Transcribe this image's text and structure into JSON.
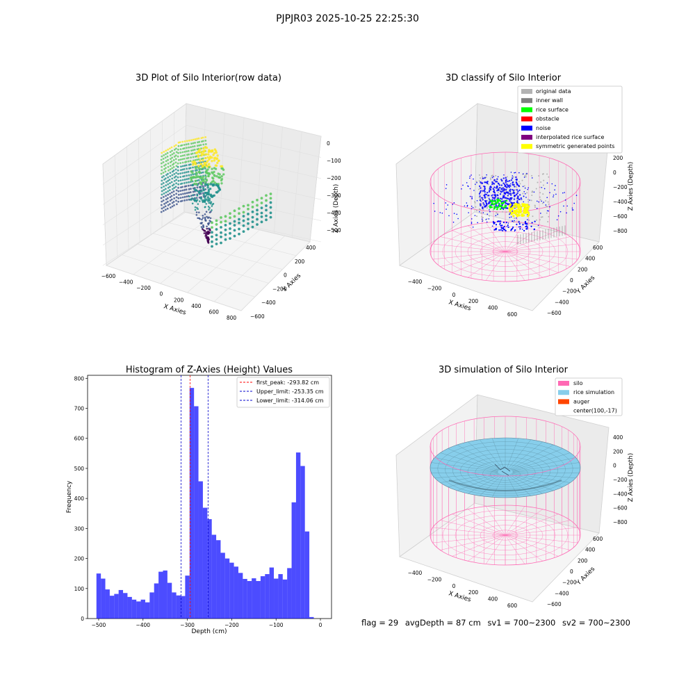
{
  "suptitle": "PJPJR03 2025-10-25 22:25:30",
  "footer": {
    "flag": "flag = 29",
    "avg_depth": "avgDepth = 87 cm",
    "sv1": "sv1 = 700~2300",
    "sv2": "sv2 = 700~2300"
  },
  "colors": {
    "histogram": "#0000ff",
    "first_peak": "#ff0000",
    "limits": "#0000cc",
    "silo": "#ff69b4",
    "rice": "#87ceeb",
    "auger": "#ff4500",
    "original": "#b3b3b3",
    "inner_wall": "#808080",
    "rice_surface": "#00ff00",
    "obstacle": "#ff0000",
    "noise": "#0000ff",
    "interpolated": "#800080",
    "symmetric": "#ffff00"
  },
  "panels": {
    "raw": {
      "title": "3D Plot of Silo Interior(row data)",
      "xlabel": "X Axies",
      "ylabel": "Y Axies",
      "zlabel": "Z Axies (Depth)",
      "xticks": [
        "−600",
        "−400",
        "−200",
        "0",
        "200",
        "400",
        "600",
        "800"
      ],
      "yticks": [
        "−600",
        "−400",
        "−200",
        "0",
        "200",
        "400"
      ],
      "zticks": [
        "0",
        "−100",
        "−200",
        "−300",
        "−400",
        "−500"
      ]
    },
    "classify": {
      "title": "3D classify of Silo Interior",
      "xlabel": "X Axies",
      "ylabel": "Y Axies",
      "zlabel": "Z Axies (Depth)",
      "xticks": [
        "−400",
        "−200",
        "0",
        "200",
        "400",
        "600"
      ],
      "yticks": [
        "−600",
        "−400",
        "−200",
        "0",
        "200",
        "400",
        "600"
      ],
      "zticks": [
        "200",
        "0",
        "−200",
        "−400",
        "−600",
        "−800"
      ],
      "legend": [
        {
          "label": "original data",
          "color": "#b3b3b3"
        },
        {
          "label": "inner wall",
          "color": "#808080"
        },
        {
          "label": "rice surface",
          "color": "#00ff00"
        },
        {
          "label": "obstacle",
          "color": "#ff0000"
        },
        {
          "label": "noise",
          "color": "#0000ff"
        },
        {
          "label": "interpolated rice surface",
          "color": "#800080"
        },
        {
          "label": "symmetric generated points",
          "color": "#ffff00"
        }
      ]
    },
    "simulation": {
      "title": "3D simulation of Silo Interior",
      "xlabel": "X Axies",
      "ylabel": "Y Axies",
      "zlabel": "Z Axies (Depth)",
      "xticks": [
        "−400",
        "−200",
        "0",
        "200",
        "400",
        "600"
      ],
      "yticks": [
        "−600",
        "−400",
        "−200",
        "0",
        "200",
        "400",
        "600"
      ],
      "zticks": [
        "400",
        "200",
        "0",
        "−200",
        "−400",
        "−600",
        "−800"
      ],
      "legend": [
        {
          "label": "silo",
          "color": "#ff69b4"
        },
        {
          "label": "rice simulation",
          "color": "#87ceeb"
        },
        {
          "label": "auger",
          "color": "#ff4500"
        },
        {
          "label": "center(100,-17)",
          "color": ""
        }
      ]
    }
  },
  "chart_data": {
    "type": "bar",
    "title": "Histogram of Z-Axies (Height) Values",
    "xlabel": "Depth (cm)",
    "ylabel": "Frequency",
    "xlim": [
      -525,
      25
    ],
    "ylim": [
      0,
      810
    ],
    "xticks": [
      -500,
      -400,
      -300,
      -200,
      -100,
      0
    ],
    "yticks": [
      0,
      100,
      200,
      300,
      400,
      500,
      600,
      700,
      800
    ],
    "bin_start": -505,
    "bin_width": 10,
    "values": [
      150,
      133,
      97,
      76,
      82,
      95,
      85,
      72,
      63,
      57,
      63,
      54,
      87,
      117,
      156,
      160,
      119,
      87,
      77,
      75,
      143,
      768,
      707,
      457,
      369,
      331,
      279,
      261,
      219,
      200,
      186,
      173,
      152,
      132,
      125,
      134,
      125,
      141,
      148,
      170,
      133,
      148,
      130,
      168,
      387,
      553,
      508,
      290,
      5
    ],
    "vlines": [
      {
        "label": "first_peak: -293.82 cm",
        "x": -293.82,
        "color": "#ff0000"
      },
      {
        "label": "Upper_limit: -253.35 cm",
        "x": -253.35,
        "color": "#0000cc"
      },
      {
        "label": "Lower_limit: -314.06 cm",
        "x": -314.06,
        "color": "#0000cc"
      }
    ],
    "legend_position": "top-right"
  }
}
